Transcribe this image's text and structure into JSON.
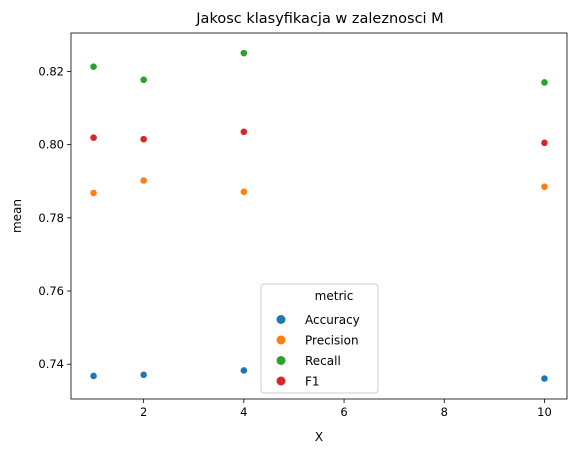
{
  "chart_data": {
    "type": "scatter",
    "title": "Jakosc klasyfikacja w zaleznosci M",
    "xlabel": "X",
    "ylabel": "mean",
    "xlim": [
      0.55,
      10.45
    ],
    "ylim": [
      0.7305,
      0.8305
    ],
    "x_ticks": [
      2,
      4,
      6,
      8,
      10
    ],
    "y_ticks": [
      0.74,
      0.76,
      0.78,
      0.8,
      0.82
    ],
    "y_tick_labels": [
      "0.74",
      "0.76",
      "0.78",
      "0.80",
      "0.82"
    ],
    "grid": false,
    "legend": {
      "title": "metric",
      "placement": "lower-center",
      "entries": [
        "Accuracy",
        "Precision",
        "Recall",
        "F1"
      ]
    },
    "series": [
      {
        "name": "Accuracy",
        "color": "#1f77b4",
        "x": [
          1,
          2,
          4,
          10
        ],
        "y": [
          0.7368,
          0.7371,
          0.7383,
          0.7361
        ]
      },
      {
        "name": "Precision",
        "color": "#ff7f0e",
        "x": [
          1,
          2,
          4,
          10
        ],
        "y": [
          0.7868,
          0.7902,
          0.7871,
          0.7885
        ]
      },
      {
        "name": "Recall",
        "color": "#2ca02c",
        "x": [
          1,
          2,
          4,
          10
        ],
        "y": [
          0.8213,
          0.8177,
          0.825,
          0.817
        ]
      },
      {
        "name": "F1",
        "color": "#d62728",
        "x": [
          1,
          2,
          4,
          10
        ],
        "y": [
          0.8019,
          0.8015,
          0.8035,
          0.8005
        ]
      }
    ]
  }
}
